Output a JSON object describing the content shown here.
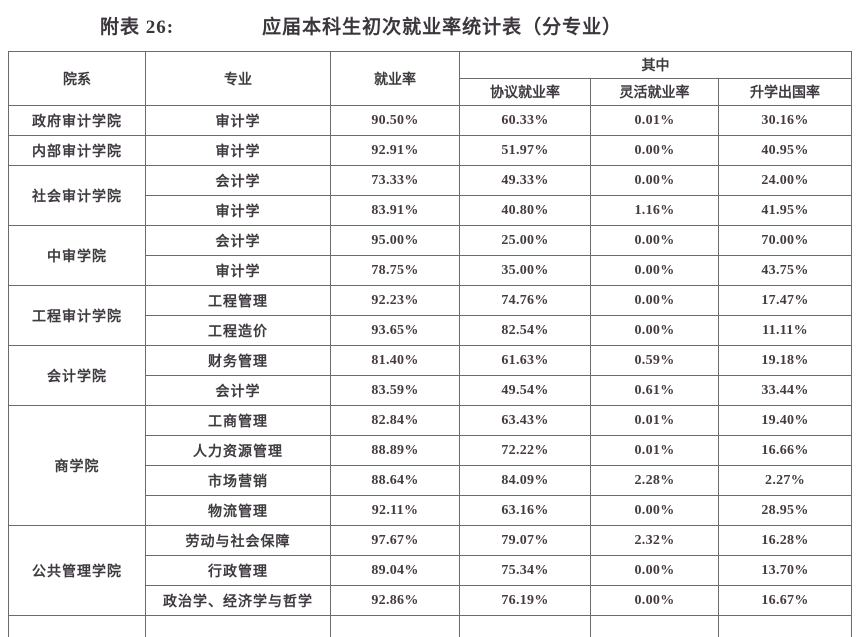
{
  "title": {
    "label": "附表 26:",
    "text": "应届本科生初次就业率统计表（分专业）"
  },
  "table": {
    "headers": {
      "college": "院系",
      "major": "专业",
      "employment_rate": "就业率",
      "among": "其中",
      "sub": [
        "协议就业率",
        "灵活就业率",
        "升学出国率"
      ]
    },
    "columns_keys": [
      "major",
      "rate",
      "agreement",
      "flexible",
      "further"
    ],
    "groups": [
      {
        "college": "政府审计学院",
        "rows": [
          {
            "major": "审计学",
            "rate": "90.50%",
            "agreement": "60.33%",
            "flexible": "0.01%",
            "further": "30.16%"
          }
        ]
      },
      {
        "college": "内部审计学院",
        "rows": [
          {
            "major": "审计学",
            "rate": "92.91%",
            "agreement": "51.97%",
            "flexible": "0.00%",
            "further": "40.95%"
          }
        ]
      },
      {
        "college": "社会审计学院",
        "rows": [
          {
            "major": "会计学",
            "rate": "73.33%",
            "agreement": "49.33%",
            "flexible": "0.00%",
            "further": "24.00%"
          },
          {
            "major": "审计学",
            "rate": "83.91%",
            "agreement": "40.80%",
            "flexible": "1.16%",
            "further": "41.95%"
          }
        ]
      },
      {
        "college": "中审学院",
        "rows": [
          {
            "major": "会计学",
            "rate": "95.00%",
            "agreement": "25.00%",
            "flexible": "0.00%",
            "further": "70.00%"
          },
          {
            "major": "审计学",
            "rate": "78.75%",
            "agreement": "35.00%",
            "flexible": "0.00%",
            "further": "43.75%"
          }
        ]
      },
      {
        "college": "工程审计学院",
        "rows": [
          {
            "major": "工程管理",
            "rate": "92.23%",
            "agreement": "74.76%",
            "flexible": "0.00%",
            "further": "17.47%"
          },
          {
            "major": "工程造价",
            "rate": "93.65%",
            "agreement": "82.54%",
            "flexible": "0.00%",
            "further": "11.11%"
          }
        ]
      },
      {
        "college": "会计学院",
        "rows": [
          {
            "major": "财务管理",
            "rate": "81.40%",
            "agreement": "61.63%",
            "flexible": "0.59%",
            "further": "19.18%"
          },
          {
            "major": "会计学",
            "rate": "83.59%",
            "agreement": "49.54%",
            "flexible": "0.61%",
            "further": "33.44%"
          }
        ]
      },
      {
        "college": "商学院",
        "rows": [
          {
            "major": "工商管理",
            "rate": "82.84%",
            "agreement": "63.43%",
            "flexible": "0.01%",
            "further": "19.40%"
          },
          {
            "major": "人力资源管理",
            "rate": "88.89%",
            "agreement": "72.22%",
            "flexible": "0.01%",
            "further": "16.66%"
          },
          {
            "major": "市场营销",
            "rate": "88.64%",
            "agreement": "84.09%",
            "flexible": "2.28%",
            "further": "2.27%"
          },
          {
            "major": "物流管理",
            "rate": "92.11%",
            "agreement": "63.16%",
            "flexible": "0.00%",
            "further": "28.95%"
          }
        ]
      },
      {
        "college": "公共管理学院",
        "rows": [
          {
            "major": "劳动与社会保障",
            "rate": "97.67%",
            "agreement": "79.07%",
            "flexible": "2.32%",
            "further": "16.28%"
          },
          {
            "major": "行政管理",
            "rate": "89.04%",
            "agreement": "75.34%",
            "flexible": "0.00%",
            "further": "13.70%"
          },
          {
            "major": "政治学、经济学与哲学",
            "rate": "92.86%",
            "agreement": "76.19%",
            "flexible": "0.00%",
            "further": "16.67%"
          }
        ]
      }
    ]
  },
  "colors": {
    "text": "#3f3a40",
    "border": "#6b6b6b",
    "background": "#ffffff"
  }
}
